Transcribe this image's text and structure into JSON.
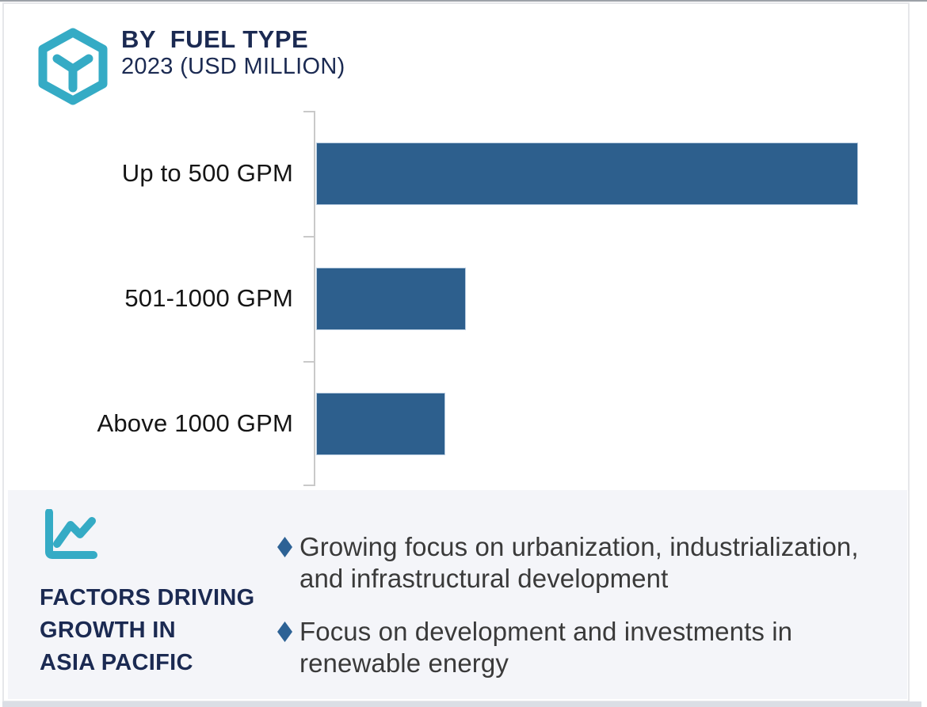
{
  "header": {
    "title": "BY  FUEL TYPE",
    "subtitle": "2023 (USD MILLION)",
    "logo_icon": "hexagon-cube-logo"
  },
  "chart_data": {
    "type": "bar",
    "orientation": "horizontal",
    "title": "BY FUEL TYPE",
    "subtitle": "2023 (USD MILLION)",
    "year": "2023",
    "unit": "USD Million",
    "categories": [
      "Up to 500 GPM",
      "501-1000 GPM",
      "Above 1000 GPM"
    ],
    "values_relative_to_max_pct": [
      100,
      27.6,
      23.8
    ],
    "value_labels_shown": false,
    "grid": false,
    "legend": false,
    "bar_color": "#2d5f8d",
    "axis_color": "#c9c9c9"
  },
  "factors": {
    "icon": "line-chart-icon",
    "title_lines": [
      "FACTORS DRIVING",
      "GROWTH IN",
      "ASIA PACIFIC"
    ],
    "bullets": [
      {
        "lines": [
          "Growing focus on urbanization, industrialization,",
          "and infrastructural development"
        ]
      },
      {
        "lines": [
          "Focus on development and investments in",
          "renewable energy"
        ]
      }
    ]
  },
  "colors": {
    "navy": "#1b2a52",
    "teal": "#35abc5",
    "bar_blue": "#2d5f8d",
    "bullet_diamond": "#2d6295",
    "panel_bg": "#f4f5f9",
    "axis_gray": "#c9c9c9",
    "bullet_text": "#3a3a3a"
  }
}
